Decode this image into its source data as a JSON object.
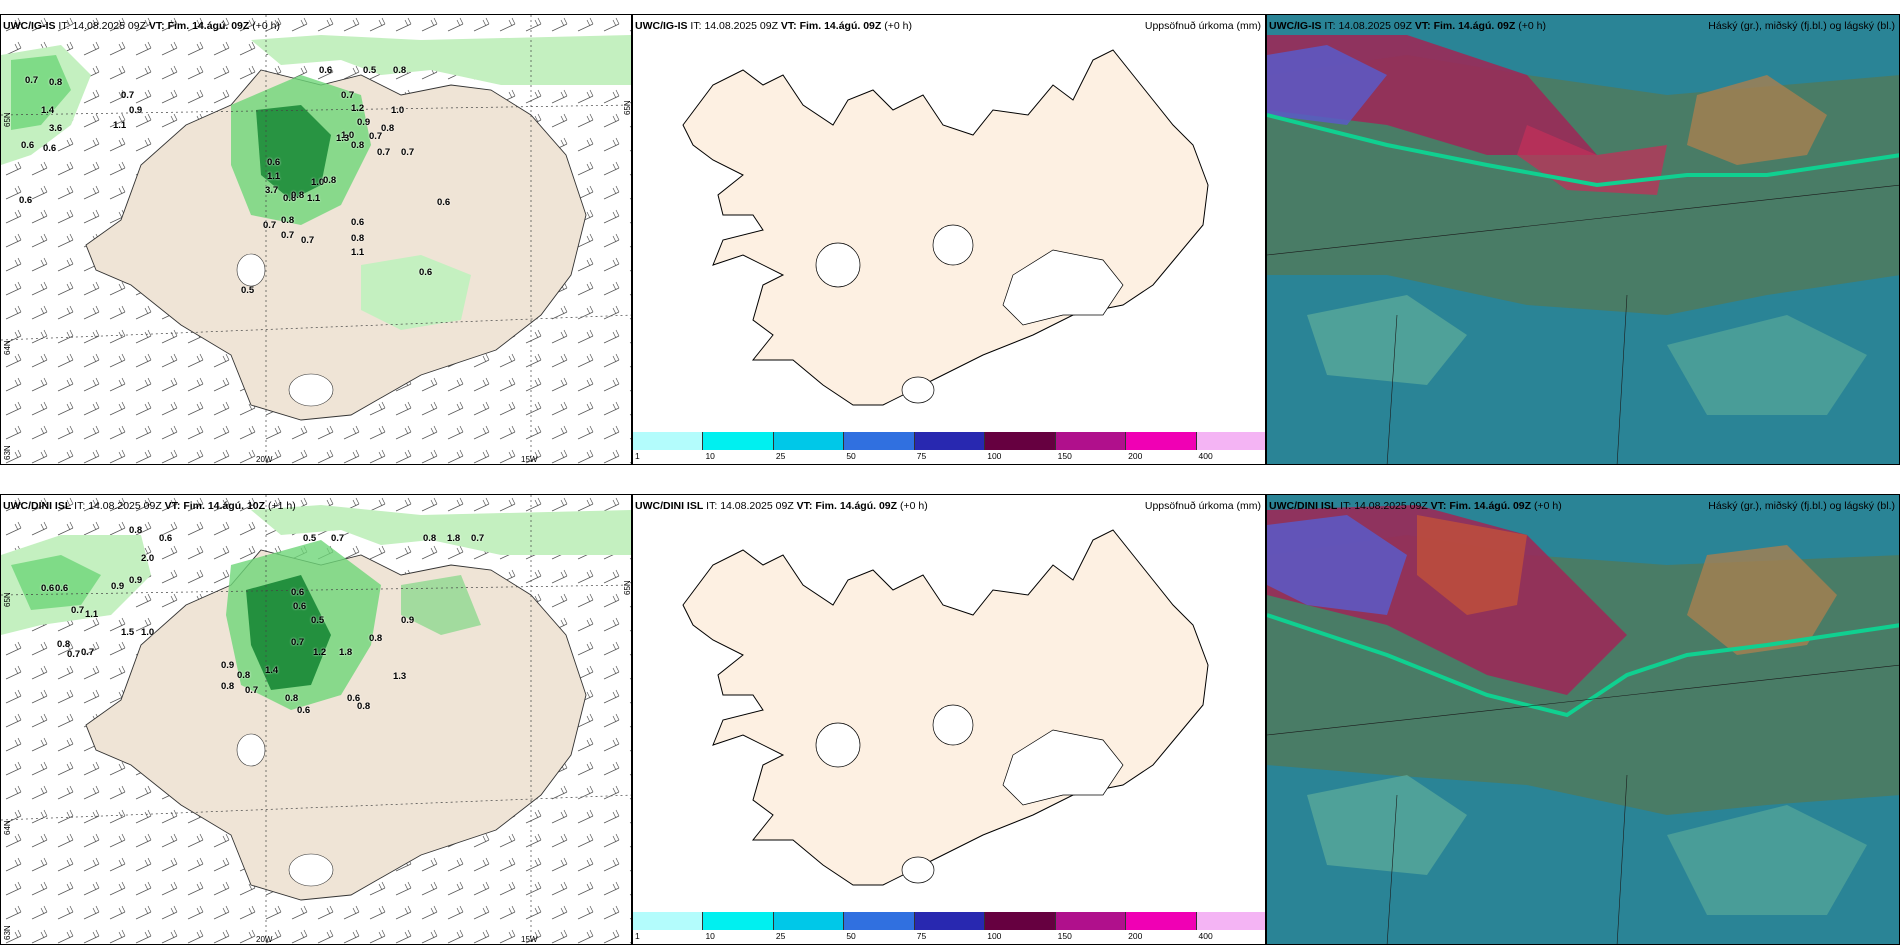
{
  "rows": [
    {
      "model": "UWC/IG-IS",
      "wind_panel": {
        "it_label": "IT:",
        "it_value": "14.08.2025 09Z",
        "vt_label": "VT:",
        "vt_value": "Fim. 14.ágú. 09Z",
        "offset": "(+0 h)",
        "lat_labels": [
          "65N",
          "64N",
          "63N"
        ],
        "lon_labels": [
          "20W",
          "15W"
        ],
        "values": [
          "0.7",
          "0.8",
          "0.6",
          "0.5",
          "0.8",
          "0.7",
          "0.9",
          "1.1",
          "1.4",
          "3.6",
          "0.6",
          "0.6",
          "0.7",
          "1.2",
          "0.9",
          "1.0",
          "0.8",
          "1.0",
          "0.8",
          "0.7",
          "0.6",
          "1.1",
          "3.7",
          "0.6",
          "1.1",
          "1.0",
          "1.3",
          "0.7",
          "0.7",
          "0.8",
          "0.8",
          "0.6",
          "0.6",
          "0.8",
          "0.7",
          "0.7",
          "0.6",
          "0.8",
          "1.1",
          "0.7",
          "0.5",
          "0.6"
        ]
      },
      "precip_panel": {
        "it_label": "IT:",
        "it_value": "14.08.2025 09Z",
        "vt_label": "VT:",
        "vt_value": "Fim. 14.ágú. 09Z",
        "offset": "(+0 h)",
        "right_label": "Uppsöfnuð úrkoma (mm)"
      },
      "cloud_panel": {
        "it_label": "IT:",
        "it_value": "14.08.2025 09Z",
        "vt_label": "VT:",
        "vt_value": "Fim. 14.ágú. 09Z",
        "offset": "(+0 h)",
        "right_label": "Háský (gr.), miðský (fj.bl.) og lágský (bl.)"
      }
    },
    {
      "model": "UWC/DINI ISL",
      "wind_panel": {
        "it_label": "IT:",
        "it_value": "14.08.2025 09Z",
        "vt_label": "VT:",
        "vt_value": "Fim. 14.ágú. 10Z",
        "offset": "(+1 h)",
        "lat_labels": [
          "65N",
          "64N",
          "63N"
        ],
        "lon_labels": [
          "20W",
          "15W"
        ],
        "values": [
          "0.8",
          "0.6",
          "0.5",
          "0.7",
          "0.8",
          "1.8",
          "0.7",
          "2.0",
          "0.9",
          "0.9",
          "0.6",
          "0.6",
          "0.7",
          "1.1",
          "1.5",
          "1.0",
          "0.8",
          "0.7",
          "0.7",
          "0.9",
          "0.8",
          "1.4",
          "1.2",
          "1.8",
          "0.8",
          "0.9",
          "1.3",
          "0.6",
          "0.6",
          "0.5",
          "0.7",
          "0.8",
          "0.7",
          "0.8",
          "0.6",
          "0.6",
          "0.8"
        ]
      },
      "precip_panel": {
        "it_label": "IT:",
        "it_value": "14.08.2025 09Z",
        "vt_label": "VT:",
        "vt_value": "Fim. 14.ágú. 09Z",
        "offset": "(+0 h)",
        "right_label": "Uppsöfnuð úrkoma (mm)"
      },
      "cloud_panel": {
        "it_label": "IT:",
        "it_value": "14.08.2025 09Z",
        "vt_label": "VT:",
        "vt_value": "Fim. 14.ágú. 09Z",
        "offset": "(+0 h)",
        "right_label": "Háský (gr.), miðský (fj.bl.) og lágský (bl.)"
      }
    }
  ],
  "precip_scale": {
    "ticks": [
      "1",
      "10",
      "25",
      "50",
      "75",
      "100",
      "150",
      "200",
      "400"
    ],
    "colors": [
      "#b3fcfc",
      "#00f0f0",
      "#00c8e8",
      "#3070e0",
      "#2828b0",
      "#660040",
      "#b0108c",
      "#f000b4",
      "#f4b4f4"
    ]
  },
  "colors": {
    "land": "#fdf0e2",
    "land_dim": "#efe5d8",
    "precip_light": "#c4f0c0",
    "precip_mid": "#6ed678",
    "precip_dark": "#1e8c3a",
    "cloud_low": "#2a8496",
    "cloud_mid": "#4f7a5e",
    "cloud_high": "#9a2a58"
  }
}
